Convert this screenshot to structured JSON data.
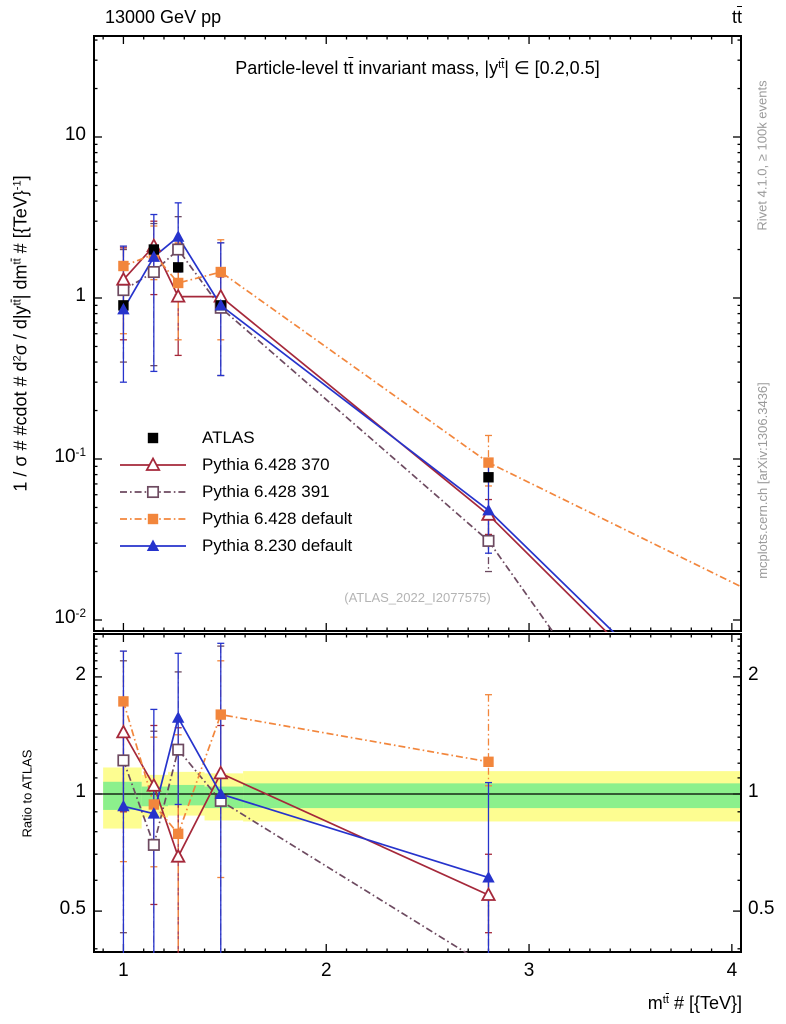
{
  "header": {
    "left": "13000 GeV pp",
    "right_segments": [
      {
        "t": "t"
      },
      {
        "t": "t",
        "bar": true
      }
    ]
  },
  "panel_title_segments": [
    {
      "t": "Particle-level t"
    },
    {
      "t": "t",
      "bar": true
    },
    {
      "t": " invariant mass, |y"
    },
    {
      "t": "t",
      "sup": true
    },
    {
      "t": "t",
      "sup": true,
      "bar": true
    },
    {
      "t": "| ∈ [0.2,0.5]"
    }
  ],
  "watermark": "(ATLAS_2022_I2077575)",
  "side_notes": {
    "top": "Rivet 4.1.0, ≥ 100k events",
    "bottom": "mcplots.cern.ch [arXiv:1306.3436]"
  },
  "axes": {
    "y_label_segments": [
      {
        "t": "1 / σ # #cdot # d"
      },
      {
        "t": "2",
        "sup": true
      },
      {
        "t": "σ / d|y"
      },
      {
        "t": "t",
        "sup": true
      },
      {
        "t": "t",
        "sup": true,
        "bar": true
      },
      {
        "t": "| dm"
      },
      {
        "t": "t",
        "sup": true
      },
      {
        "t": "t",
        "sup": true,
        "bar": true
      },
      {
        "t": " # [{TeV}"
      },
      {
        "t": "-1",
        "sup": true
      },
      {
        "t": "]"
      }
    ],
    "x_label_segments": [
      {
        "t": "m"
      },
      {
        "t": "t",
        "sup": true
      },
      {
        "t": "t",
        "sup": true,
        "bar": true
      },
      {
        "t": " # [{TeV}]"
      }
    ],
    "ratio_label": "Ratio to ATLAS",
    "x_ticks": {
      "values": [
        1,
        2,
        3,
        4
      ],
      "labels": [
        "1",
        "2",
        "3",
        "4"
      ]
    },
    "main_y_ticks": {
      "values": [
        10,
        1,
        0.1,
        0.01
      ],
      "labels": [
        [
          {
            "t": "10"
          }
        ],
        [
          {
            "t": "1"
          }
        ],
        [
          {
            "t": "10"
          },
          {
            "t": "-1",
            "sup": true
          }
        ],
        [
          {
            "t": "10"
          },
          {
            "t": "-2",
            "sup": true
          }
        ]
      ]
    },
    "ratio_y_ticks": {
      "values": [
        2,
        1,
        0.5
      ],
      "labels": [
        "2",
        "1",
        "0.5"
      ]
    }
  },
  "chart_data": {
    "type": "line",
    "title": "Particle-level ttbar invariant mass, |y_ttbar| in [0.2,0.5]",
    "xlabel": "m_ttbar [TeV]",
    "ylabel": "1/sigma d2sigma/d|y| dm [1/TeV]",
    "x_range": [
      0.85,
      4.05
    ],
    "main_y_range": [
      0.0084,
      43
    ],
    "main_y_scale": "log",
    "ratio_y_range": [
      0.39,
      2.59
    ],
    "ratio_y_scale": "log",
    "x": [
      1.0,
      1.15,
      1.27,
      1.48,
      2.8
    ],
    "series": [
      {
        "name": "ATLAS",
        "color": "#000000",
        "marker": "square",
        "filled": true,
        "line": "none",
        "main": [
          0.9,
          2.0,
          1.55,
          0.9,
          0.077
        ]
      },
      {
        "name": "Pythia 6.428 370",
        "color": "#a5283a",
        "marker": "triangle",
        "filled": false,
        "line": "solid",
        "main": [
          1.3,
          2.1,
          1.02,
          1.02,
          0.045
        ],
        "main_err": [
          [
            0.55,
            2.05
          ],
          [
            1.05,
            3.0
          ],
          [
            0.44,
            2.3
          ],
          [
            0.85,
            1.35
          ],
          [
            0.034,
            0.056
          ]
        ],
        "main_ext": [
          3.6,
          0.0045
        ],
        "ratio": [
          1.44,
          1.05,
          0.69,
          1.13,
          0.55
        ],
        "ratio_err": [
          [
            0.9,
            1.75
          ],
          [
            0.52,
            1.5
          ],
          [
            0.3,
            1.48
          ],
          [
            0.94,
            1.5
          ],
          [
            0.44,
            0.7
          ]
        ]
      },
      {
        "name": "Pythia 6.428 391",
        "color": "#6d4a60",
        "marker": "square",
        "filled": false,
        "line": "dashdot",
        "main": [
          1.12,
          1.45,
          2.0,
          0.87,
          0.031
        ],
        "main_err": [
          [
            0.4,
            2.0
          ],
          [
            0.38,
            2.9
          ],
          [
            1.05,
            3.2
          ],
          [
            0.33,
            2.2
          ],
          [
            0.02,
            0.046
          ]
        ],
        "main_ext": [
          3.3,
          0.004
        ],
        "ratio": [
          1.22,
          0.74,
          1.3,
          0.96,
          0.36
        ],
        "ratio_err": [
          [
            0.44,
            2.2
          ],
          [
            0.26,
            1.45
          ],
          [
            0.68,
            2.06
          ],
          [
            0.37,
            2.4
          ],
          [
            0.26,
            0.6
          ]
        ]
      },
      {
        "name": "Pythia 6.428 default",
        "color": "#f2863c",
        "marker": "square",
        "filled": true,
        "line": "dashdot",
        "main": [
          1.58,
          1.87,
          1.24,
          1.45,
          0.095
        ],
        "main_err": [
          [
            0.6,
            2.1
          ],
          [
            1.3,
            2.8
          ],
          [
            0.55,
            2.2
          ],
          [
            0.55,
            2.3
          ],
          [
            0.068,
            0.14
          ]
        ],
        "main_ext": [
          4.05,
          0.016
        ],
        "ratio": [
          1.73,
          0.94,
          0.79,
          1.6,
          1.21
        ],
        "ratio_err": [
          [
            0.67,
            2.33
          ],
          [
            0.65,
            1.4
          ],
          [
            0.35,
            1.42
          ],
          [
            0.61,
            2.2
          ],
          [
            1.05,
            1.8
          ]
        ]
      },
      {
        "name": "Pythia 8.230 default",
        "color": "#2633cc",
        "marker": "triangle",
        "filled": true,
        "line": "solid",
        "main": [
          0.85,
          1.8,
          2.4,
          0.9,
          0.048
        ],
        "main_err": [
          [
            0.3,
            2.1
          ],
          [
            0.35,
            3.3
          ],
          [
            1.45,
            3.9
          ],
          [
            0.33,
            2.2
          ],
          [
            0.026,
            0.092
          ]
        ],
        "main_ext": [
          3.6,
          0.005
        ],
        "ratio": [
          0.93,
          0.89,
          1.57,
          1.0,
          0.61
        ],
        "ratio_err": [
          [
            0.33,
            2.33
          ],
          [
            0.18,
            1.65
          ],
          [
            0.94,
            2.3
          ],
          [
            0.37,
            2.44
          ],
          [
            0.34,
            1.07
          ]
        ]
      }
    ],
    "ratio_bands": {
      "x_edges": [
        0.9,
        1.09,
        1.22,
        1.4,
        1.59,
        4.05
      ],
      "yellow": [
        [
          0.815,
          1.17
        ],
        [
          0.87,
          1.12
        ],
        [
          0.88,
          1.14
        ],
        [
          0.855,
          1.13
        ],
        [
          0.85,
          1.145
        ]
      ],
      "green": [
        [
          0.91,
          1.075
        ],
        [
          0.93,
          1.045
        ],
        [
          0.935,
          1.055
        ],
        [
          0.92,
          1.045
        ],
        [
          0.92,
          1.065
        ]
      ],
      "yellow_color": "#fdfd91",
      "green_color": "#8cf08c"
    }
  }
}
